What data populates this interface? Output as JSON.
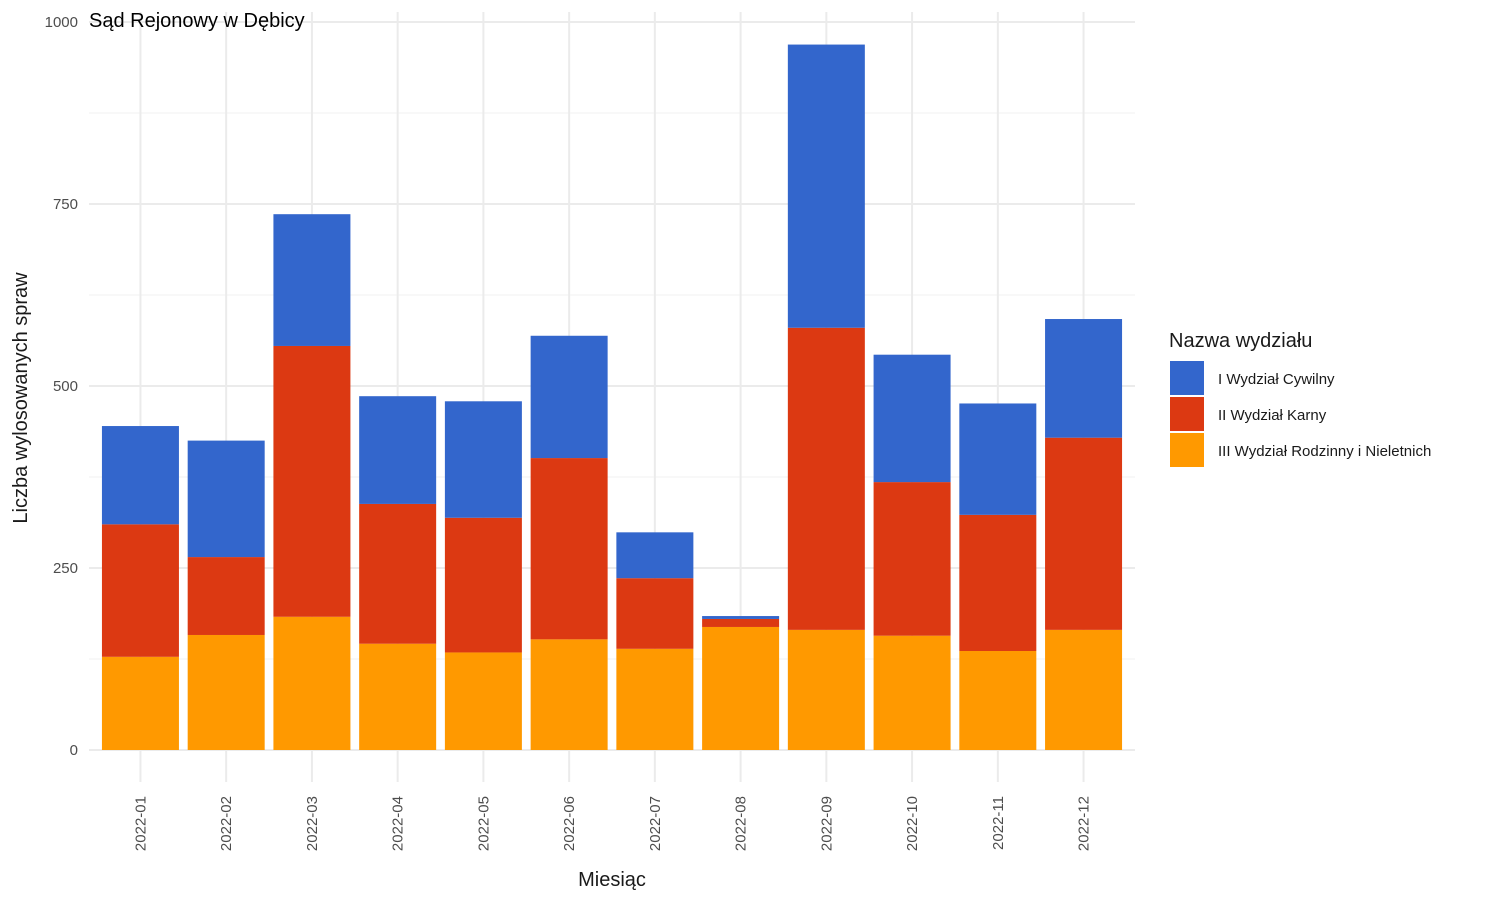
{
  "chart_data": {
    "type": "bar",
    "stacked": true,
    "title": "Sąd Rejonowy w Dębicy",
    "xlabel": "Miesiąc",
    "ylabel": "Liczba wylosowanych spraw",
    "ylim": [
      0,
      1000
    ],
    "yticks": [
      0,
      250,
      500,
      750,
      1000
    ],
    "grid": true,
    "legend": {
      "title": "Nazwa wydziału",
      "position": "right"
    },
    "categories": [
      "2022-01",
      "2022-02",
      "2022-03",
      "2022-04",
      "2022-05",
      "2022-06",
      "2022-07",
      "2022-08",
      "2022-09",
      "2022-10",
      "2022-11",
      "2022-12"
    ],
    "series": [
      {
        "name": "III Wydział Rodzinny i Nieletnich",
        "color": "#ff9900",
        "values": [
          128,
          158,
          183,
          146,
          134,
          152,
          139,
          169,
          165,
          157,
          136,
          165
        ]
      },
      {
        "name": "II Wydział Karny",
        "color": "#dc3912",
        "values": [
          182,
          107,
          372,
          192,
          185,
          249,
          97,
          11,
          415,
          211,
          187,
          264
        ]
      },
      {
        "name": "I Wydział Cywilny",
        "color": "#3366cc",
        "values": [
          135,
          160,
          181,
          148,
          160,
          168,
          63,
          4,
          389,
          175,
          153,
          163
        ]
      }
    ],
    "legend_order": [
      "I Wydział Cywilny",
      "II Wydział Karny",
      "III Wydział Rodzinny i Nieletnich"
    ]
  }
}
